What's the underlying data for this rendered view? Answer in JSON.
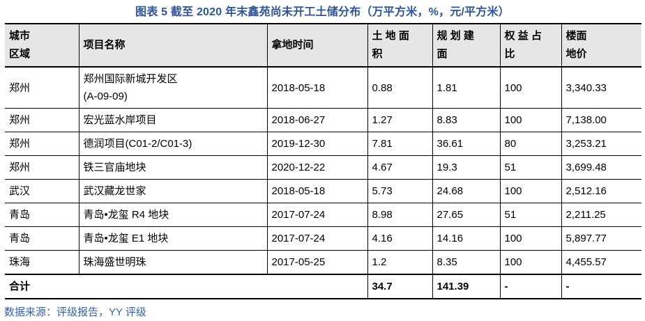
{
  "title": "图表 5 截至 2020 年末鑫苑尚未开工土储分布（万平方米，%，元/平方米）",
  "table": {
    "headers": {
      "city": "城市\n区域",
      "project": "项目名称",
      "date": "拿地时间",
      "land_area": "土 地 面\n积",
      "planned_area": "规 划 建\n面",
      "equity": "权 益 占\n比",
      "floor_price": "楼面\n地价"
    },
    "rows": [
      {
        "city": "郑州",
        "project": "郑州国际新城开发区\n(A-09-09)",
        "date": "2018-05-18",
        "land_area": "0.88",
        "planned_area": "1.81",
        "equity": "100",
        "floor_price": "3,340.33"
      },
      {
        "city": "郑州",
        "project": "宏光蓝水岸项目",
        "date": "2018-06-27",
        "land_area": "1.27",
        "planned_area": "8.83",
        "equity": "100",
        "floor_price": "7,138.00"
      },
      {
        "city": "郑州",
        "project": "德润项目(C01-2/C01-3)",
        "date": "2019-12-30",
        "land_area": "7.81",
        "planned_area": "36.61",
        "equity": "80",
        "floor_price": "3,253.21"
      },
      {
        "city": "郑州",
        "project": "铁三官庙地块",
        "date": "2020-12-22",
        "land_area": "4.67",
        "planned_area": "19.3",
        "equity": "51",
        "floor_price": "3,699.48"
      },
      {
        "city": "武汉",
        "project": "武汉藏龙世家",
        "date": "2018-05-18",
        "land_area": "5.73",
        "planned_area": "24.68",
        "equity": "100",
        "floor_price": "2,512.16"
      },
      {
        "city": "青岛",
        "project": "青岛•龙玺 R4 地块",
        "date": "2017-07-24",
        "land_area": "8.98",
        "planned_area": "27.65",
        "equity": "51",
        "floor_price": "2,211.25"
      },
      {
        "city": "青岛",
        "project": "青岛•龙玺 E1 地块",
        "date": "2017-07-24",
        "land_area": "4.16",
        "planned_area": "14.16",
        "equity": "100",
        "floor_price": "5,897.77"
      },
      {
        "city": "珠海",
        "project": "珠海盛世明珠",
        "date": "2017-05-25",
        "land_area": "1.2",
        "planned_area": "8.35",
        "equity": "100",
        "floor_price": "4,455.57"
      }
    ],
    "total": {
      "label": "合计",
      "land_area": "34.7",
      "planned_area": "141.39",
      "equity": "-",
      "floor_price": "-"
    }
  },
  "source_note": "数据来源：评级报告，YY 评级",
  "colors": {
    "title_blue": "#2E5597",
    "source_blue": "#3662AD",
    "header_bg": "#E7E6E6",
    "border_black": "#000000"
  }
}
